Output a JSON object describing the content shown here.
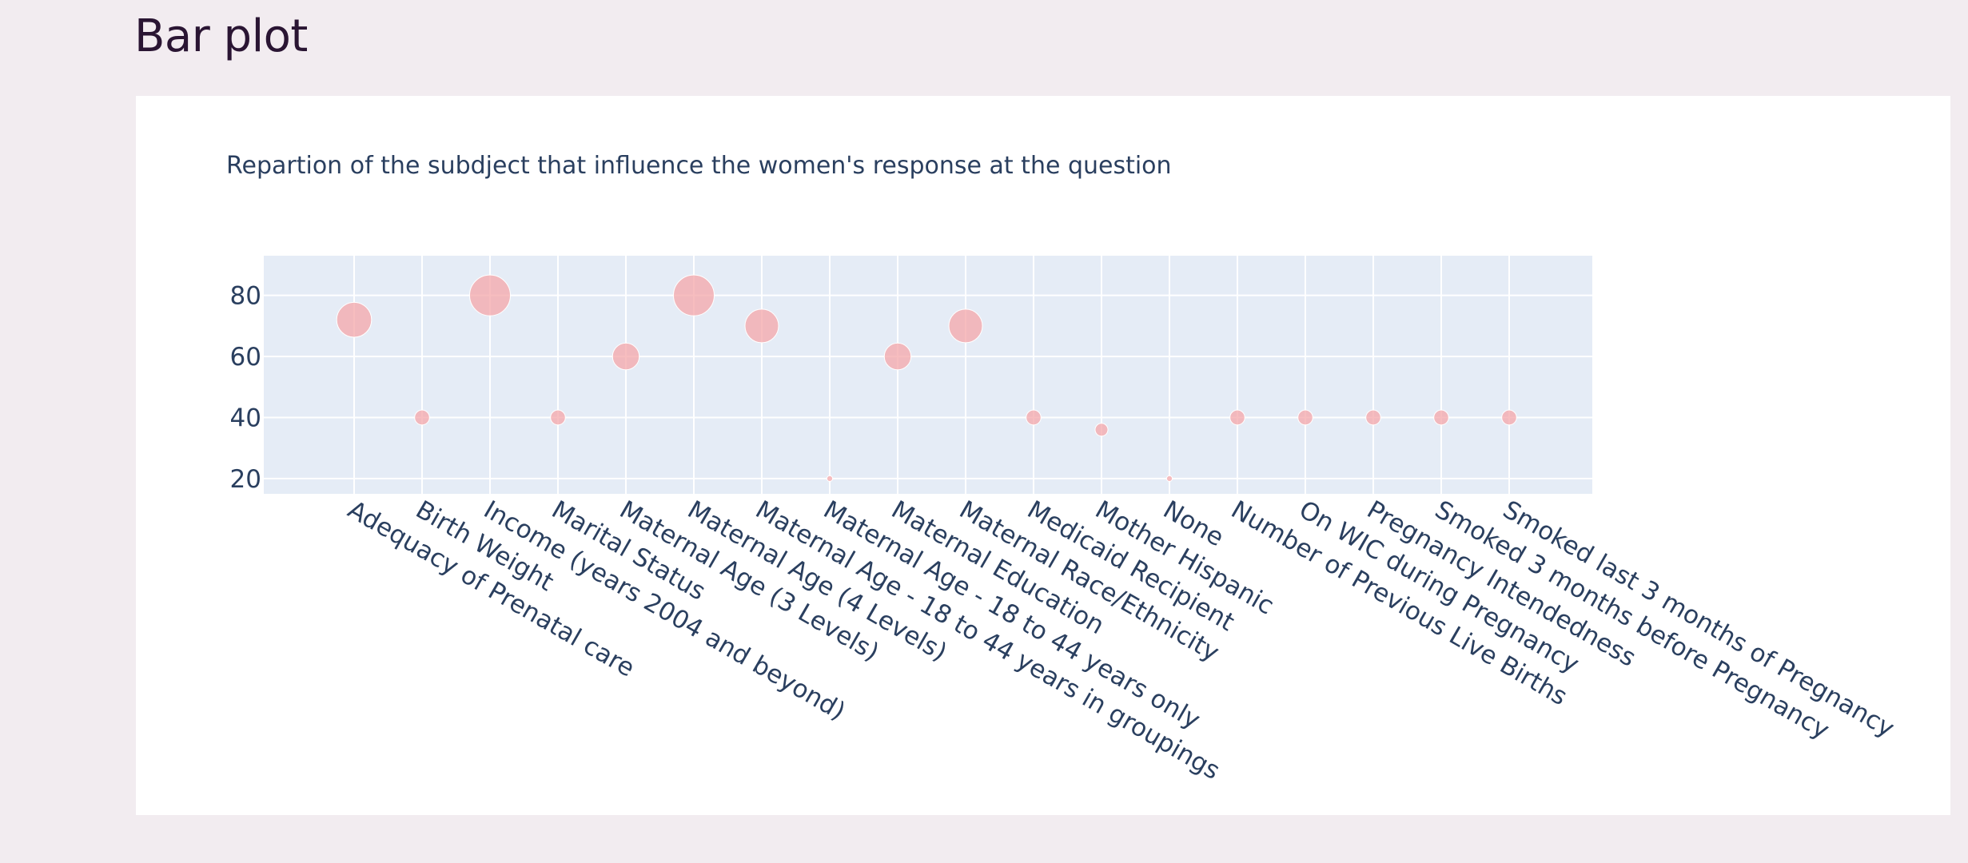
{
  "page": {
    "heading": "Bar plot"
  },
  "chart_data": {
    "type": "scatter",
    "title": "Repartion of the subdject that influence the women's response at the question",
    "xlabel": "",
    "ylabel": "",
    "ylim": [
      15,
      93
    ],
    "yticks": [
      20,
      40,
      60,
      80
    ],
    "grid": true,
    "marker_color": "#f4a7aa",
    "plot_bg": "#e5ecf6",
    "categories": [
      "Adequacy of Prenatal care",
      "Birth Weight",
      "Income (years 2004 and beyond)",
      "Marital Status",
      "Maternal Age (3 Levels)",
      "Maternal Age (4 Levels)",
      "Maternal Age - 18 to 44 years in groupings",
      "Maternal Age - 18 to 44 years only",
      "Maternal Education",
      "Maternal Race/Ethnicity",
      "Medicaid Recipient",
      "Mother Hispanic",
      "None",
      "Number of Previous Live Births",
      "On WIC during Pregnancy",
      "Pregnancy Intendedness",
      "Smoked 3 months before Pregnancy",
      "Smoked last 3 months of Pregnancy"
    ],
    "values": [
      72,
      40,
      80,
      40,
      60,
      80,
      70,
      20,
      60,
      70,
      40,
      36,
      20,
      40,
      40,
      40,
      40,
      40
    ]
  }
}
